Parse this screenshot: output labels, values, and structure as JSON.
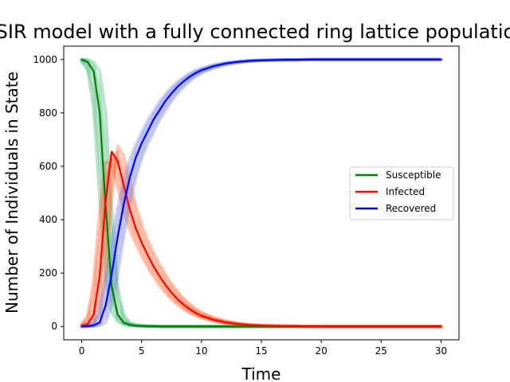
{
  "chart_data": {
    "type": "line",
    "title": "SIR model with a fully connected ring lattice population",
    "xlabel": "Time",
    "ylabel": "Number of Individuals in State",
    "xlim": [
      -1.5,
      31.5
    ],
    "ylim": [
      -50,
      1050
    ],
    "xticks": [
      0,
      5,
      10,
      15,
      20,
      25,
      30
    ],
    "yticks": [
      0,
      200,
      400,
      600,
      800,
      1000
    ],
    "grid": false,
    "legend_position": "center-right",
    "x": [
      0,
      0.5,
      1,
      1.5,
      2,
      2.5,
      3,
      3.5,
      4,
      4.5,
      5,
      5.5,
      6,
      6.5,
      7,
      7.5,
      8,
      8.5,
      9,
      9.5,
      10,
      11,
      12,
      13,
      14,
      15,
      16,
      17,
      18,
      19,
      20,
      22,
      24,
      26,
      28,
      30
    ],
    "series": [
      {
        "name": "Susceptible",
        "color": "#008000",
        "band_color": "#3cb371",
        "values": [
          1000,
          990,
          955,
          800,
          450,
          150,
          45,
          15,
          6,
          3,
          2,
          1,
          1,
          0,
          0,
          0,
          0,
          0,
          0,
          0,
          0,
          0,
          0,
          0,
          0,
          0,
          0,
          0,
          0,
          0,
          0,
          0,
          0,
          0,
          0,
          0
        ]
      },
      {
        "name": "Infected",
        "color": "#ff0000",
        "band_color": "#ff5a1f",
        "values": [
          2,
          10,
          45,
          190,
          470,
          655,
          620,
          530,
          440,
          370,
          315,
          268,
          225,
          188,
          155,
          127,
          102,
          82,
          65,
          51,
          40,
          25,
          15,
          9,
          5,
          3,
          2,
          1,
          1,
          0,
          0,
          0,
          0,
          0,
          0,
          0
        ]
      },
      {
        "name": "Recovered",
        "color": "#0000ff",
        "band_color": "#6f7fd8",
        "values": [
          0,
          1,
          4,
          15,
          80,
          195,
          335,
          455,
          555,
          630,
          685,
          730,
          775,
          810,
          845,
          873,
          898,
          918,
          935,
          949,
          960,
          975,
          985,
          991,
          995,
          997,
          998,
          999,
          999,
          1000,
          1000,
          1000,
          1000,
          1000,
          1000,
          1000
        ]
      }
    ]
  }
}
